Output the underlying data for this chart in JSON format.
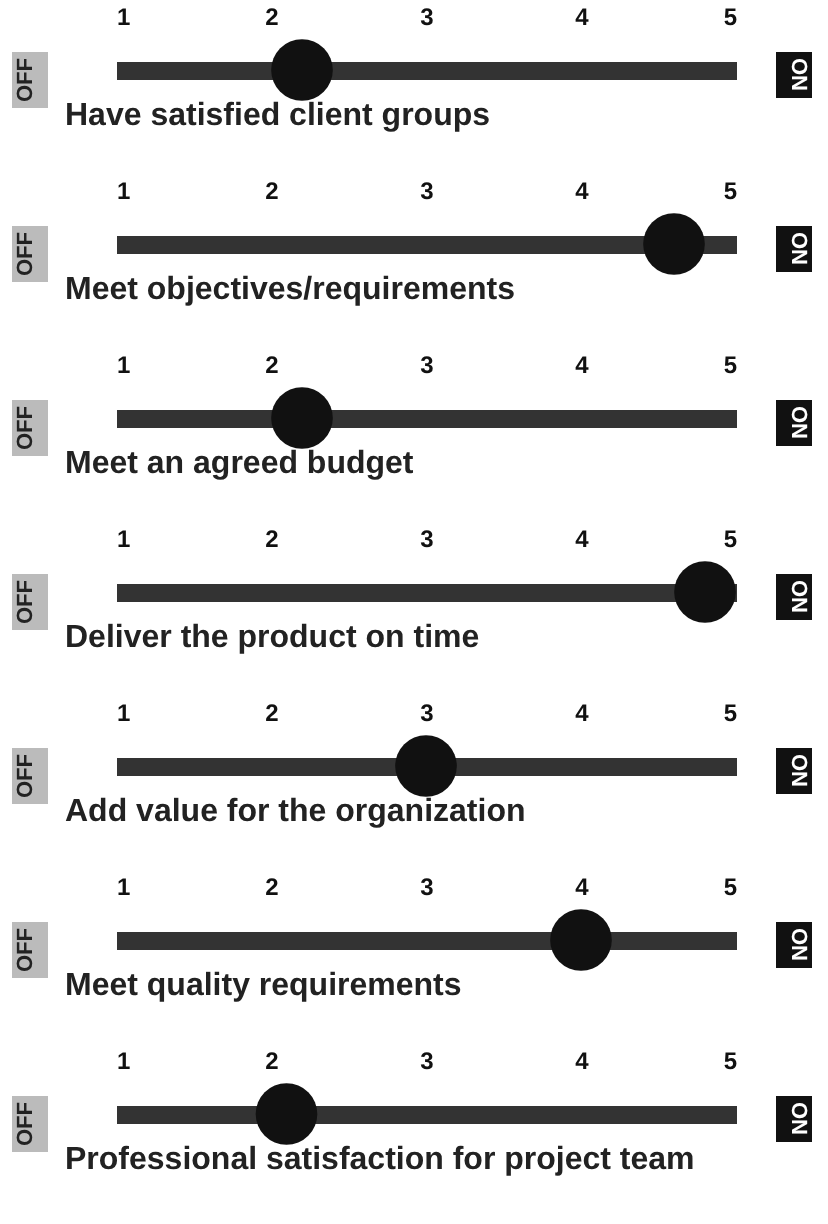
{
  "chart_data": [
    {
      "type": "scatter",
      "orientation": "horizontal",
      "categories": [
        "Have satisfied client groups"
      ],
      "values": [
        2.2
      ],
      "color": "#111111",
      "xlim": [
        1,
        5
      ],
      "xticks": [
        1,
        2,
        3,
        4,
        5
      ],
      "grid": false,
      "marker": "circle",
      "annotations": [
        "OFF",
        "ON"
      ]
    },
    {
      "type": "scatter",
      "orientation": "horizontal",
      "categories": [
        "Meet objectives/requirements"
      ],
      "values": [
        4.6
      ],
      "color": "#111111",
      "xlim": [
        1,
        5
      ],
      "xticks": [
        1,
        2,
        3,
        4,
        5
      ],
      "grid": false,
      "marker": "circle",
      "annotations": [
        "OFF",
        "ON"
      ]
    },
    {
      "type": "scatter",
      "orientation": "horizontal",
      "categories": [
        "Meet an agreed budget"
      ],
      "values": [
        2.2
      ],
      "color": "#111111",
      "xlim": [
        1,
        5
      ],
      "xticks": [
        1,
        2,
        3,
        4,
        5
      ],
      "grid": false,
      "marker": "circle",
      "annotations": [
        "OFF",
        "ON"
      ]
    },
    {
      "type": "scatter",
      "orientation": "horizontal",
      "categories": [
        "Deliver the product on time"
      ],
      "values": [
        4.8
      ],
      "color": "#111111",
      "xlim": [
        1,
        5
      ],
      "xticks": [
        1,
        2,
        3,
        4,
        5
      ],
      "grid": false,
      "marker": "circle",
      "annotations": [
        "OFF",
        "ON"
      ]
    },
    {
      "type": "scatter",
      "orientation": "horizontal",
      "categories": [
        "Add value for the organization"
      ],
      "values": [
        3.0
      ],
      "color": "#111111",
      "xlim": [
        1,
        5
      ],
      "xticks": [
        1,
        2,
        3,
        4,
        5
      ],
      "grid": false,
      "marker": "circle",
      "annotations": [
        "OFF",
        "ON"
      ]
    },
    {
      "type": "scatter",
      "orientation": "horizontal",
      "categories": [
        "Meet quality requirements"
      ],
      "values": [
        4.0
      ],
      "color": "#111111",
      "xlim": [
        1,
        5
      ],
      "xticks": [
        1,
        2,
        3,
        4,
        5
      ],
      "grid": false,
      "marker": "circle",
      "annotations": [
        "OFF",
        "ON"
      ]
    },
    {
      "type": "scatter",
      "orientation": "horizontal",
      "categories": [
        "Professional satisfaction for project team"
      ],
      "values": [
        2.1
      ],
      "color": "#111111",
      "xlim": [
        1,
        5
      ],
      "xticks": [
        1,
        2,
        3,
        4,
        5
      ],
      "grid": false,
      "marker": "circle",
      "annotations": [
        "OFF",
        "ON"
      ]
    }
  ]
}
